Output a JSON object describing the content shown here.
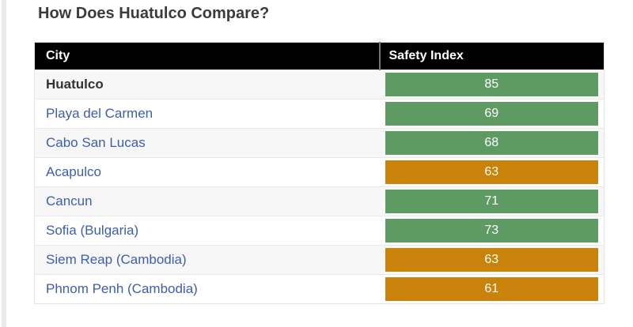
{
  "title": "How Does Huatulco Compare?",
  "colors": {
    "green": "#5d9b62",
    "orange": "#c9820a",
    "link_blue": "#3d5dad",
    "header_bg": "#000000",
    "header_text": "#ffffff"
  },
  "table": {
    "headers": {
      "city": "City",
      "safety_index": "Safety Index"
    },
    "rows": [
      {
        "city": "Huatulco",
        "safety_index": "85",
        "bar_color": "green",
        "is_current": true
      },
      {
        "city": "Playa del Carmen",
        "safety_index": "69",
        "bar_color": "green",
        "is_current": false
      },
      {
        "city": "Cabo San Lucas",
        "safety_index": "68",
        "bar_color": "green",
        "is_current": false
      },
      {
        "city": "Acapulco",
        "safety_index": "63",
        "bar_color": "orange",
        "is_current": false
      },
      {
        "city": "Cancun",
        "safety_index": "71",
        "bar_color": "green",
        "is_current": false
      },
      {
        "city": "Sofia (Bulgaria)",
        "safety_index": "73",
        "bar_color": "green",
        "is_current": false
      },
      {
        "city": "Siem Reap (Cambodia)",
        "safety_index": "63",
        "bar_color": "orange",
        "is_current": false
      },
      {
        "city": "Phnom Penh (Cambodia)",
        "safety_index": "61",
        "bar_color": "orange",
        "is_current": false
      }
    ]
  },
  "chart_data": {
    "type": "table",
    "title": "How Does Huatulco Compare?",
    "columns": [
      "City",
      "Safety Index"
    ],
    "rows": [
      [
        "Huatulco",
        85
      ],
      [
        "Playa del Carmen",
        69
      ],
      [
        "Cabo San Lucas",
        68
      ],
      [
        "Acapulco",
        63
      ],
      [
        "Cancun",
        71
      ],
      [
        "Sofia (Bulgaria)",
        73
      ],
      [
        "Siem Reap (Cambodia)",
        63
      ],
      [
        "Phnom Penh (Cambodia)",
        61
      ]
    ],
    "bar_color_by_row": [
      "green",
      "green",
      "green",
      "orange",
      "green",
      "green",
      "orange",
      "orange"
    ],
    "value_range_implied": [
      0,
      100
    ],
    "notes": "Bars are equal full-cell width; color encodes safety tier (green = safer, orange = lower score)."
  }
}
